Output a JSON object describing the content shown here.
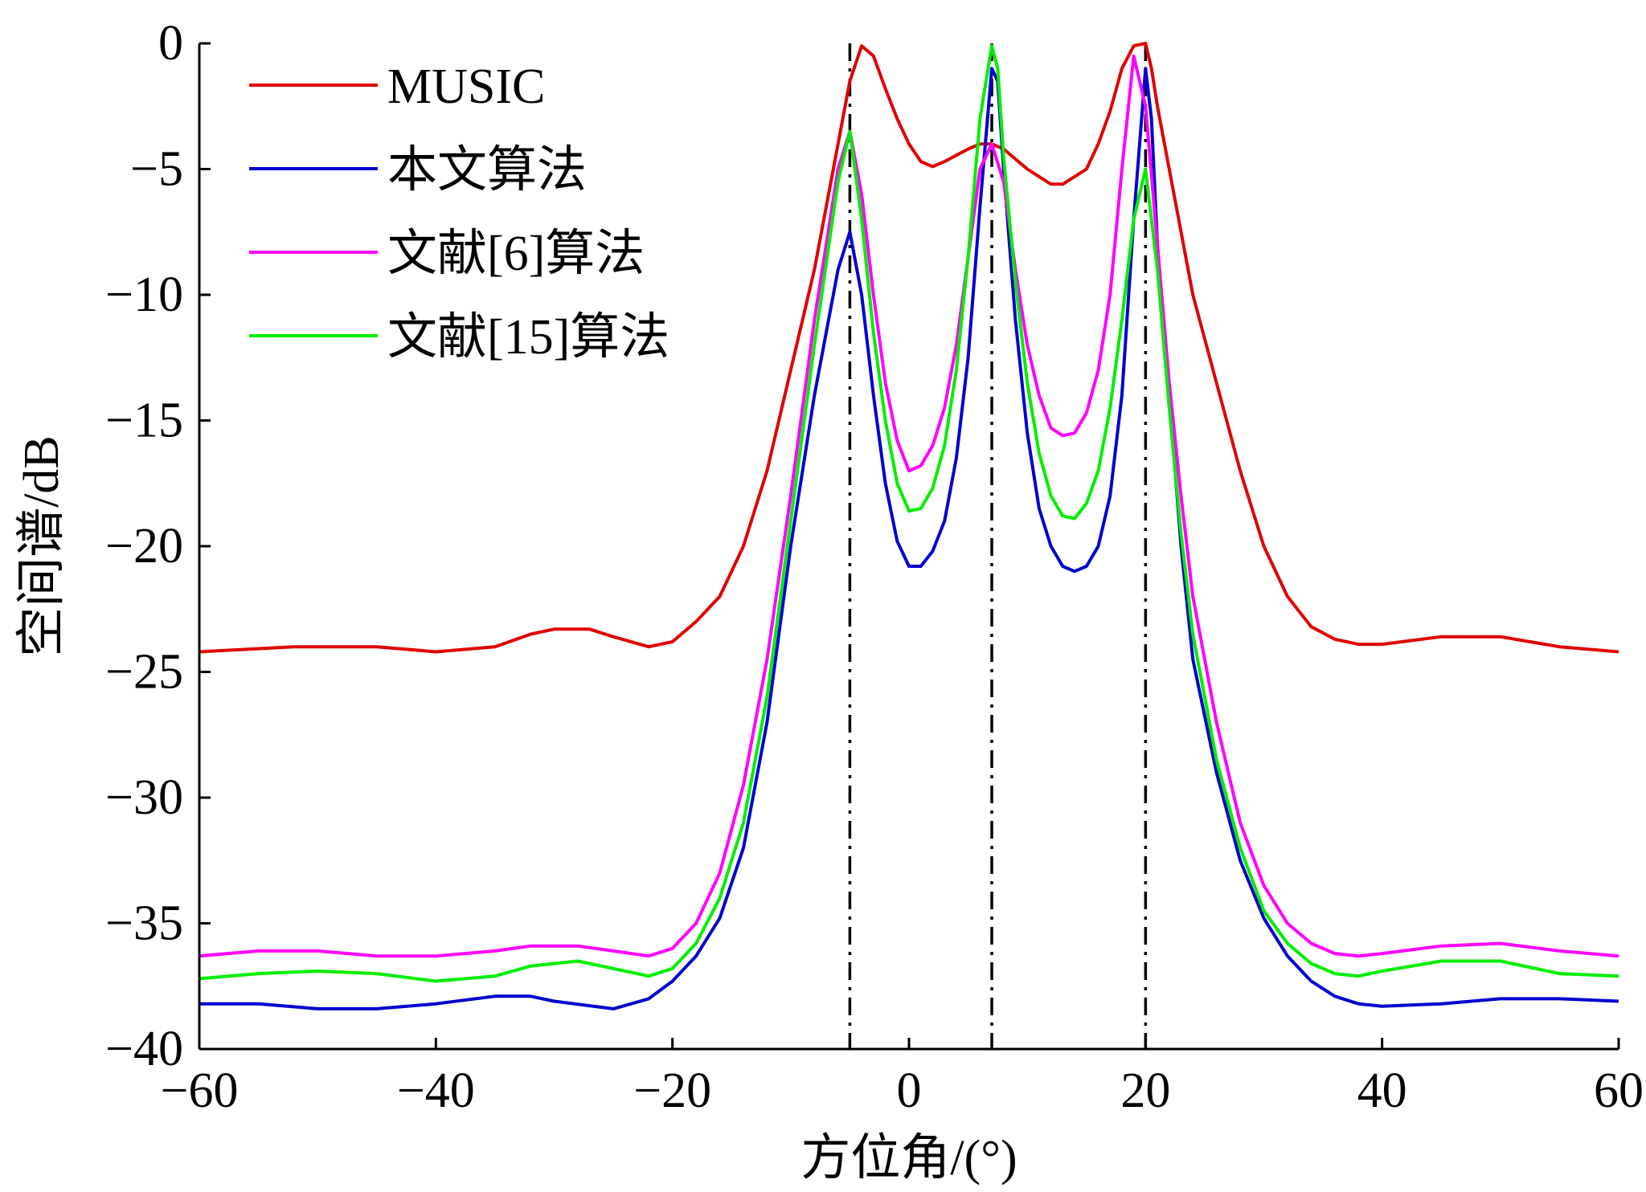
{
  "chart_data": {
    "type": "line",
    "title": "",
    "xlabel": "方位角/(°)",
    "ylabel": "空间谱/dB",
    "xlim": [
      -60,
      60
    ],
    "ylim": [
      -40,
      0
    ],
    "xticks": [
      -60,
      -40,
      -20,
      0,
      20,
      40,
      60
    ],
    "yticks": [
      0,
      -5,
      -10,
      -15,
      -20,
      -25,
      -30,
      -35,
      -40
    ],
    "xtick_labels": [
      "−60",
      "−40",
      "−20",
      "0",
      "20",
      "40",
      "60"
    ],
    "ytick_labels": [
      "0",
      "−5",
      "−10",
      "−15",
      "−20",
      "−25",
      "−30",
      "−35",
      "−40"
    ],
    "grid": false,
    "legend_position": "top-left",
    "reference_lines": {
      "x": [
        -5,
        7,
        20
      ],
      "style": "dash-dot",
      "color": "#000000"
    },
    "series": [
      {
        "name": "MUSIC",
        "color": "#e00000",
        "points": [
          [
            -60,
            -24.2
          ],
          [
            -52,
            -24.0
          ],
          [
            -45,
            -24.0
          ],
          [
            -40,
            -24.2
          ],
          [
            -35,
            -24.0
          ],
          [
            -32,
            -23.5
          ],
          [
            -30,
            -23.3
          ],
          [
            -27,
            -23.3
          ],
          [
            -25,
            -23.6
          ],
          [
            -22,
            -24.0
          ],
          [
            -20,
            -23.8
          ],
          [
            -18,
            -23.0
          ],
          [
            -16,
            -22.0
          ],
          [
            -14,
            -20.0
          ],
          [
            -12,
            -17.0
          ],
          [
            -10,
            -13.0
          ],
          [
            -8,
            -9.0
          ],
          [
            -6,
            -4.0
          ],
          [
            -5,
            -1.5
          ],
          [
            -4,
            -0.1
          ],
          [
            -3,
            -0.5
          ],
          [
            -2,
            -1.8
          ],
          [
            -1,
            -3.0
          ],
          [
            0,
            -4.0
          ],
          [
            1,
            -4.7
          ],
          [
            2,
            -4.9
          ],
          [
            3,
            -4.7
          ],
          [
            5,
            -4.2
          ],
          [
            6,
            -4.0
          ],
          [
            7,
            -4.0
          ],
          [
            8,
            -4.2
          ],
          [
            10,
            -5.0
          ],
          [
            12,
            -5.6
          ],
          [
            13,
            -5.6
          ],
          [
            15,
            -5.0
          ],
          [
            16,
            -4.0
          ],
          [
            17,
            -2.7
          ],
          [
            18,
            -1.0
          ],
          [
            19,
            -0.1
          ],
          [
            20,
            0.0
          ],
          [
            20.5,
            -1.0
          ],
          [
            21,
            -2.5
          ],
          [
            22,
            -5.0
          ],
          [
            23,
            -7.5
          ],
          [
            24,
            -10.0
          ],
          [
            26,
            -13.5
          ],
          [
            28,
            -17.0
          ],
          [
            30,
            -20.0
          ],
          [
            32,
            -22.0
          ],
          [
            34,
            -23.2
          ],
          [
            36,
            -23.7
          ],
          [
            38,
            -23.9
          ],
          [
            40,
            -23.9
          ],
          [
            45,
            -23.6
          ],
          [
            50,
            -23.6
          ],
          [
            55,
            -24.0
          ],
          [
            60,
            -24.2
          ]
        ]
      },
      {
        "name": "本文算法",
        "color": "#0000d0",
        "points": [
          [
            -60,
            -38.2
          ],
          [
            -55,
            -38.2
          ],
          [
            -50,
            -38.4
          ],
          [
            -45,
            -38.4
          ],
          [
            -40,
            -38.2
          ],
          [
            -35,
            -37.9
          ],
          [
            -32,
            -37.9
          ],
          [
            -30,
            -38.1
          ],
          [
            -25,
            -38.4
          ],
          [
            -22,
            -38.0
          ],
          [
            -20,
            -37.3
          ],
          [
            -18,
            -36.3
          ],
          [
            -16,
            -34.8
          ],
          [
            -14,
            -32.0
          ],
          [
            -12,
            -27.0
          ],
          [
            -10,
            -20.0
          ],
          [
            -8,
            -14.0
          ],
          [
            -6,
            -9.0
          ],
          [
            -5,
            -7.5
          ],
          [
            -4,
            -10.0
          ],
          [
            -3,
            -14.0
          ],
          [
            -2,
            -17.5
          ],
          [
            -1,
            -19.8
          ],
          [
            0,
            -20.8
          ],
          [
            1,
            -20.8
          ],
          [
            2,
            -20.2
          ],
          [
            3,
            -19.0
          ],
          [
            4,
            -16.5
          ],
          [
            5,
            -12.5
          ],
          [
            6,
            -6.5
          ],
          [
            7,
            -1.0
          ],
          [
            7.5,
            -1.5
          ],
          [
            8,
            -5.0
          ],
          [
            9,
            -11.0
          ],
          [
            10,
            -15.5
          ],
          [
            11,
            -18.5
          ],
          [
            12,
            -20.0
          ],
          [
            13,
            -20.8
          ],
          [
            14,
            -21.0
          ],
          [
            15,
            -20.8
          ],
          [
            16,
            -20.0
          ],
          [
            17,
            -18.0
          ],
          [
            18,
            -14.0
          ],
          [
            19,
            -7.0
          ],
          [
            20,
            -1.0
          ],
          [
            20.5,
            -3.0
          ],
          [
            21,
            -8.0
          ],
          [
            22,
            -14.0
          ],
          [
            23,
            -20.0
          ],
          [
            24,
            -24.5
          ],
          [
            26,
            -29.0
          ],
          [
            28,
            -32.5
          ],
          [
            30,
            -34.8
          ],
          [
            32,
            -36.3
          ],
          [
            34,
            -37.3
          ],
          [
            36,
            -37.9
          ],
          [
            38,
            -38.2
          ],
          [
            40,
            -38.3
          ],
          [
            45,
            -38.2
          ],
          [
            50,
            -38.0
          ],
          [
            55,
            -38.0
          ],
          [
            60,
            -38.1
          ]
        ]
      },
      {
        "name": "文献[6]算法",
        "color": "#ff00ff",
        "points": [
          [
            -60,
            -36.3
          ],
          [
            -55,
            -36.1
          ],
          [
            -50,
            -36.1
          ],
          [
            -45,
            -36.3
          ],
          [
            -40,
            -36.3
          ],
          [
            -35,
            -36.1
          ],
          [
            -32,
            -35.9
          ],
          [
            -28,
            -35.9
          ],
          [
            -25,
            -36.1
          ],
          [
            -22,
            -36.3
          ],
          [
            -20,
            -36.0
          ],
          [
            -18,
            -35.0
          ],
          [
            -16,
            -33.0
          ],
          [
            -14,
            -29.5
          ],
          [
            -12,
            -24.5
          ],
          [
            -10,
            -18.0
          ],
          [
            -8,
            -11.0
          ],
          [
            -6,
            -5.0
          ],
          [
            -5,
            -3.5
          ],
          [
            -4,
            -6.0
          ],
          [
            -3,
            -10.0
          ],
          [
            -2,
            -13.5
          ],
          [
            -1,
            -15.8
          ],
          [
            0,
            -17.0
          ],
          [
            1,
            -16.8
          ],
          [
            2,
            -16.0
          ],
          [
            3,
            -14.5
          ],
          [
            4,
            -12.0
          ],
          [
            5,
            -8.5
          ],
          [
            6,
            -5.0
          ],
          [
            7,
            -4.0
          ],
          [
            8,
            -5.5
          ],
          [
            9,
            -9.0
          ],
          [
            10,
            -12.0
          ],
          [
            11,
            -14.0
          ],
          [
            12,
            -15.3
          ],
          [
            13,
            -15.6
          ],
          [
            14,
            -15.5
          ],
          [
            15,
            -14.7
          ],
          [
            16,
            -13.0
          ],
          [
            17,
            -10.0
          ],
          [
            18,
            -5.0
          ],
          [
            19,
            -0.5
          ],
          [
            20,
            -2.5
          ],
          [
            21,
            -8.0
          ],
          [
            22,
            -13.5
          ],
          [
            23,
            -18.0
          ],
          [
            24,
            -22.0
          ],
          [
            26,
            -27.0
          ],
          [
            28,
            -31.0
          ],
          [
            30,
            -33.5
          ],
          [
            32,
            -35.0
          ],
          [
            34,
            -35.8
          ],
          [
            36,
            -36.2
          ],
          [
            38,
            -36.3
          ],
          [
            40,
            -36.2
          ],
          [
            45,
            -35.9
          ],
          [
            50,
            -35.8
          ],
          [
            55,
            -36.1
          ],
          [
            60,
            -36.3
          ]
        ]
      },
      {
        "name": "文献[15]算法",
        "color": "#00ee00",
        "points": [
          [
            -60,
            -37.2
          ],
          [
            -55,
            -37.0
          ],
          [
            -50,
            -36.9
          ],
          [
            -45,
            -37.0
          ],
          [
            -40,
            -37.3
          ],
          [
            -35,
            -37.1
          ],
          [
            -32,
            -36.7
          ],
          [
            -28,
            -36.5
          ],
          [
            -25,
            -36.8
          ],
          [
            -22,
            -37.1
          ],
          [
            -20,
            -36.8
          ],
          [
            -18,
            -35.8
          ],
          [
            -16,
            -34.0
          ],
          [
            -14,
            -31.0
          ],
          [
            -12,
            -26.0
          ],
          [
            -10,
            -19.0
          ],
          [
            -8,
            -12.0
          ],
          [
            -6,
            -5.5
          ],
          [
            -5,
            -3.5
          ],
          [
            -4,
            -7.0
          ],
          [
            -3,
            -11.5
          ],
          [
            -2,
            -15.0
          ],
          [
            -1,
            -17.5
          ],
          [
            0,
            -18.6
          ],
          [
            1,
            -18.5
          ],
          [
            2,
            -17.7
          ],
          [
            3,
            -16.0
          ],
          [
            4,
            -13.0
          ],
          [
            5,
            -8.5
          ],
          [
            6,
            -3.0
          ],
          [
            7,
            -0.1
          ],
          [
            7.5,
            -1.0
          ],
          [
            8,
            -4.5
          ],
          [
            9,
            -9.5
          ],
          [
            10,
            -13.5
          ],
          [
            11,
            -16.3
          ],
          [
            12,
            -18.0
          ],
          [
            13,
            -18.8
          ],
          [
            14,
            -18.9
          ],
          [
            15,
            -18.3
          ],
          [
            16,
            -17.0
          ],
          [
            17,
            -14.5
          ],
          [
            18,
            -11.0
          ],
          [
            19,
            -7.0
          ],
          [
            20,
            -5.0
          ],
          [
            21,
            -9.0
          ],
          [
            22,
            -14.5
          ],
          [
            23,
            -19.5
          ],
          [
            24,
            -23.5
          ],
          [
            26,
            -28.5
          ],
          [
            28,
            -32.0
          ],
          [
            30,
            -34.5
          ],
          [
            32,
            -35.8
          ],
          [
            34,
            -36.6
          ],
          [
            36,
            -37.0
          ],
          [
            38,
            -37.1
          ],
          [
            40,
            -36.9
          ],
          [
            45,
            -36.5
          ],
          [
            50,
            -36.5
          ],
          [
            55,
            -37.0
          ],
          [
            60,
            -37.1
          ]
        ]
      }
    ]
  }
}
